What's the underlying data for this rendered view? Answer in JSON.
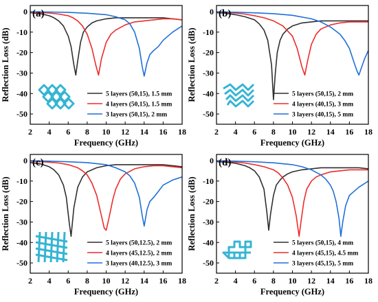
{
  "colors": {
    "black": "#2f2f2f",
    "red": "#ec2b2b",
    "blue": "#1f6fd8",
    "structure": "#35b4d4"
  },
  "chart_data": [
    {
      "panel": "(a)",
      "type": "line",
      "xlabel": "Frequency (GHz)",
      "ylabel": "Reflection Loss (dB)",
      "xlim": [
        2,
        18
      ],
      "ylim": [
        -55,
        3
      ],
      "xticks": [
        2,
        4,
        6,
        8,
        10,
        12,
        14,
        16,
        18
      ],
      "yticks": [
        0,
        -10,
        -20,
        -30,
        -40,
        -50
      ],
      "legend_position": "bottom-right",
      "icon": "grid-lattice-icon",
      "series": [
        {
          "name": "5 layers (50,15), 1.5 mm",
          "color": "black",
          "x": [
            2,
            3,
            4,
            4.5,
            5,
            5.5,
            6,
            6.3,
            6.6,
            6.8,
            7.0,
            7.3,
            7.6,
            8,
            8.5,
            9,
            10,
            11,
            12,
            13,
            14,
            15,
            16,
            17,
            18
          ],
          "y": [
            -0.5,
            -1,
            -2,
            -3,
            -4.5,
            -7,
            -12,
            -17,
            -26,
            -31,
            -24,
            -15,
            -10,
            -7.5,
            -5.5,
            -4.5,
            -3.5,
            -3,
            -3,
            -3,
            -3,
            -3,
            -3,
            -3.5,
            -4
          ]
        },
        {
          "name": "4 layers (50,15), 1.5 mm",
          "color": "red",
          "x": [
            2,
            3,
            4,
            5,
            6,
            6.5,
            7,
            7.5,
            8,
            8.5,
            8.9,
            9.2,
            9.5,
            10,
            10.5,
            11,
            12,
            13,
            14,
            15,
            16,
            17,
            18
          ],
          "y": [
            -0.3,
            -0.5,
            -0.7,
            -1.2,
            -2,
            -3,
            -4.5,
            -7,
            -11,
            -18,
            -26,
            -31,
            -23,
            -15,
            -11,
            -9,
            -6.5,
            -5,
            -4.5,
            -4,
            -3.5,
            -3.5,
            -4
          ]
        },
        {
          "name": "3 layers (50,15), 2 mm",
          "color": "blue",
          "x": [
            2,
            4,
            6,
            8,
            10,
            11,
            12,
            12.5,
            13,
            13.5,
            13.8,
            14.0,
            14.3,
            14.6,
            15,
            15.5,
            16,
            16.5,
            17,
            18
          ],
          "y": [
            -0.1,
            -0.2,
            -0.4,
            -0.8,
            -1.5,
            -2.5,
            -4,
            -6,
            -10,
            -18,
            -27,
            -31.5,
            -25,
            -21,
            -19,
            -17,
            -14,
            -12,
            -10,
            -7
          ]
        }
      ]
    },
    {
      "panel": "(b)",
      "type": "line",
      "xlabel": "Frequency (GHz)",
      "ylabel": "Reflection Loss (dB)",
      "xlim": [
        2,
        18
      ],
      "ylim": [
        -55,
        3
      ],
      "xticks": [
        2,
        4,
        6,
        8,
        10,
        12,
        14,
        16,
        18
      ],
      "yticks": [
        0,
        -10,
        -20,
        -30,
        -40,
        -50
      ],
      "legend_position": "bottom-right",
      "icon": "zigzag-lattice-icon",
      "series": [
        {
          "name": "5 layers (50,15), 2 mm",
          "color": "black",
          "x": [
            2,
            3,
            4,
            5,
            6,
            6.5,
            7,
            7.4,
            7.8,
            8.0,
            8.2,
            8.4,
            8.7,
            9,
            9.5,
            10,
            11,
            12,
            13,
            14,
            15,
            16,
            17,
            18
          ],
          "y": [
            -0.5,
            -0.8,
            -1.5,
            -2.5,
            -4,
            -6,
            -9,
            -14,
            -26,
            -43,
            -30,
            -20,
            -14,
            -11,
            -8.5,
            -7,
            -5.5,
            -5,
            -4.5,
            -4.5,
            -4.5,
            -4.5,
            -4.5,
            -4.5
          ]
        },
        {
          "name": "4 layers (40,15), 3 mm",
          "color": "red",
          "x": [
            2,
            3,
            4,
            5,
            6,
            7,
            8,
            9,
            10,
            10.5,
            11,
            11.3,
            11.6,
            12,
            12.5,
            13,
            14,
            15,
            16,
            17,
            18
          ],
          "y": [
            -0.2,
            -0.4,
            -0.7,
            -1.2,
            -2,
            -3,
            -4.5,
            -7,
            -12,
            -18,
            -27,
            -31,
            -24,
            -16,
            -11,
            -8.5,
            -6.5,
            -5.5,
            -5,
            -5,
            -5
          ]
        },
        {
          "name": "3 layers (40,15), 5 mm",
          "color": "blue",
          "x": [
            2,
            4,
            6,
            8,
            10,
            12,
            13,
            14,
            15,
            15.5,
            16,
            16.5,
            16.8,
            17.0,
            17.3,
            17.6,
            18
          ],
          "y": [
            -0.1,
            -0.3,
            -0.6,
            -1,
            -1.8,
            -3.5,
            -5,
            -7.5,
            -11,
            -14,
            -18,
            -25,
            -29,
            -31,
            -27,
            -23,
            -19
          ]
        }
      ]
    },
    {
      "panel": "(c)",
      "type": "line",
      "xlabel": "Frequency (GHz)",
      "ylabel": "Reflection Loss (dB)",
      "xlim": [
        2,
        18
      ],
      "ylim": [
        -55,
        3
      ],
      "xticks": [
        2,
        4,
        6,
        8,
        10,
        12,
        14,
        16,
        18
      ],
      "yticks": [
        0,
        -10,
        -20,
        -30,
        -40,
        -50
      ],
      "legend_position": "bottom-right",
      "icon": "woven-lattice-icon",
      "series": [
        {
          "name": "5 layers (50,12.5), 2 mm",
          "color": "black",
          "x": [
            2,
            3,
            4,
            4.5,
            5,
            5.5,
            5.8,
            6.1,
            6.3,
            6.6,
            7.0,
            7.5,
            8,
            9,
            10,
            11,
            12,
            13,
            14,
            15,
            16,
            17,
            18
          ],
          "y": [
            -1,
            -1.5,
            -3,
            -4.5,
            -7,
            -12,
            -18,
            -30,
            -37,
            -23,
            -13,
            -8,
            -5.5,
            -3.5,
            -2.5,
            -2,
            -2,
            -2,
            -2,
            -2,
            -2,
            -2.5,
            -3
          ]
        },
        {
          "name": "4 layers (45,12.5), 2 mm",
          "color": "red",
          "x": [
            2,
            3,
            4,
            5,
            6,
            7,
            7.5,
            8,
            8.5,
            9,
            9.5,
            9.8,
            10.0,
            10.3,
            10.7,
            11,
            11.5,
            12,
            13,
            14,
            15,
            16,
            17,
            18
          ],
          "y": [
            -0.3,
            -0.5,
            -0.8,
            -1.2,
            -2,
            -3.5,
            -5,
            -7,
            -11,
            -17,
            -27,
            -33,
            -34,
            -28,
            -19,
            -14,
            -9,
            -6.5,
            -4,
            -3,
            -2.5,
            -2.5,
            -3,
            -3.5
          ]
        },
        {
          "name": "3 layers (40,12.5), 3 mm",
          "color": "blue",
          "x": [
            2,
            4,
            6,
            8,
            10,
            11,
            12,
            12.5,
            13,
            13.5,
            13.8,
            14.0,
            14.3,
            14.6,
            15,
            15.5,
            16,
            17,
            18
          ],
          "y": [
            -0.1,
            -0.3,
            -0.6,
            -1,
            -2,
            -3.5,
            -5.5,
            -7.5,
            -11,
            -18,
            -27,
            -32,
            -24,
            -20,
            -18,
            -15,
            -12,
            -9.5,
            -8
          ]
        }
      ]
    },
    {
      "panel": "(d)",
      "type": "line",
      "xlabel": "Frequency (GHz)",
      "ylabel": "Reflection Loss (dB)",
      "xlim": [
        2,
        18
      ],
      "ylim": [
        -55,
        3
      ],
      "xticks": [
        2,
        4,
        6,
        8,
        10,
        12,
        14,
        16,
        18
      ],
      "yticks": [
        0,
        -10,
        -20,
        -30,
        -40,
        -50
      ],
      "legend_position": "bottom-right",
      "icon": "interlocking-lattice-icon",
      "series": [
        {
          "name": "5 layers (50,15), 4 mm",
          "color": "black",
          "x": [
            2,
            3,
            4,
            5,
            5.5,
            6,
            6.5,
            7,
            7.3,
            7.5,
            7.7,
            8,
            8.3,
            8.7,
            9,
            9.5,
            10,
            11,
            12,
            13,
            14,
            15,
            16,
            17,
            18
          ],
          "y": [
            -0.5,
            -0.8,
            -1.3,
            -2.5,
            -3.5,
            -5,
            -8,
            -14,
            -25,
            -34,
            -26,
            -17,
            -12,
            -9.5,
            -8,
            -6.5,
            -5.5,
            -4.5,
            -4,
            -3.5,
            -3.5,
            -3.5,
            -3.5,
            -3.5,
            -4
          ]
        },
        {
          "name": "4 layers (45,15), 4.5 mm",
          "color": "red",
          "x": [
            2,
            3,
            4,
            5,
            6,
            7,
            8,
            8.5,
            9,
            9.5,
            10,
            10.4,
            10.7,
            10.9,
            11.2,
            11.5,
            12,
            12.5,
            13,
            14,
            15,
            16,
            17,
            18
          ],
          "y": [
            -0.2,
            -0.4,
            -0.7,
            -1.2,
            -2,
            -3,
            -4.5,
            -6,
            -8.5,
            -12,
            -18,
            -27,
            -37,
            -30,
            -20,
            -14,
            -10,
            -8,
            -7,
            -5.5,
            -5,
            -4.5,
            -4.5,
            -4.5
          ]
        },
        {
          "name": "3 layers (45,15), 5 mm",
          "color": "blue",
          "x": [
            2,
            4,
            6,
            8,
            10,
            11,
            12,
            13,
            13.5,
            14,
            14.3,
            14.6,
            14.9,
            15.1,
            15.3,
            15.6,
            16,
            17,
            18
          ],
          "y": [
            -0.1,
            -0.3,
            -0.6,
            -1.1,
            -2,
            -3,
            -4.5,
            -7,
            -9,
            -12,
            -15,
            -20,
            -28,
            -37,
            -30,
            -22,
            -17,
            -13,
            -10
          ]
        }
      ]
    }
  ]
}
